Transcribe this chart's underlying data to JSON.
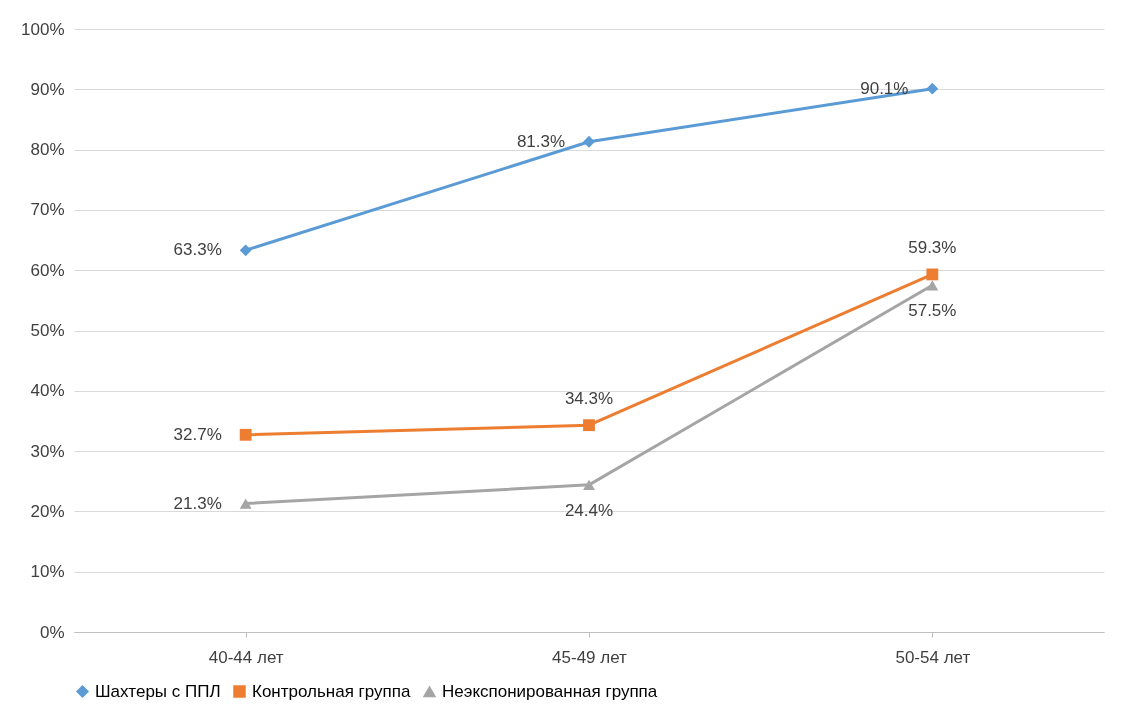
{
  "chart_data": {
    "type": "line",
    "categories": [
      "40-44 лет",
      "45-49 лет",
      "50-54 лет"
    ],
    "ylim": [
      0,
      100
    ],
    "yticks": [
      {
        "value": 0,
        "label": "0%"
      },
      {
        "value": 10,
        "label": "10%"
      },
      {
        "value": 20,
        "label": "20%"
      },
      {
        "value": 30,
        "label": "30%"
      },
      {
        "value": 40,
        "label": "40%"
      },
      {
        "value": 50,
        "label": "50%"
      },
      {
        "value": 60,
        "label": "60%"
      },
      {
        "value": 70,
        "label": "70%"
      },
      {
        "value": 80,
        "label": "80%"
      },
      {
        "value": 90,
        "label": "90%"
      },
      {
        "value": 100,
        "label": "100%"
      }
    ],
    "grid": "y",
    "legend": "bottom",
    "line_style": "solid",
    "series": [
      {
        "name": "Шахтеры с ППЛ",
        "color": "#5b9bd5",
        "marker": "diamond",
        "values": [
          63.3,
          81.3,
          90.1
        ],
        "value_labels": [
          "63.3%",
          "81.3%",
          "90.1%"
        ]
      },
      {
        "name": "Контрольная группа",
        "color": "#ed7d31",
        "marker": "square",
        "values": [
          32.7,
          34.3,
          59.3
        ],
        "value_labels": [
          "32.7%",
          "34.3%",
          "59.3%"
        ]
      },
      {
        "name": "Неэкспонированная группа",
        "color": "#a5a5a5",
        "marker": "triangle",
        "values": [
          21.3,
          24.4,
          57.5
        ],
        "value_labels": [
          "21.3%",
          "24.4%",
          "57.5%"
        ]
      }
    ]
  }
}
